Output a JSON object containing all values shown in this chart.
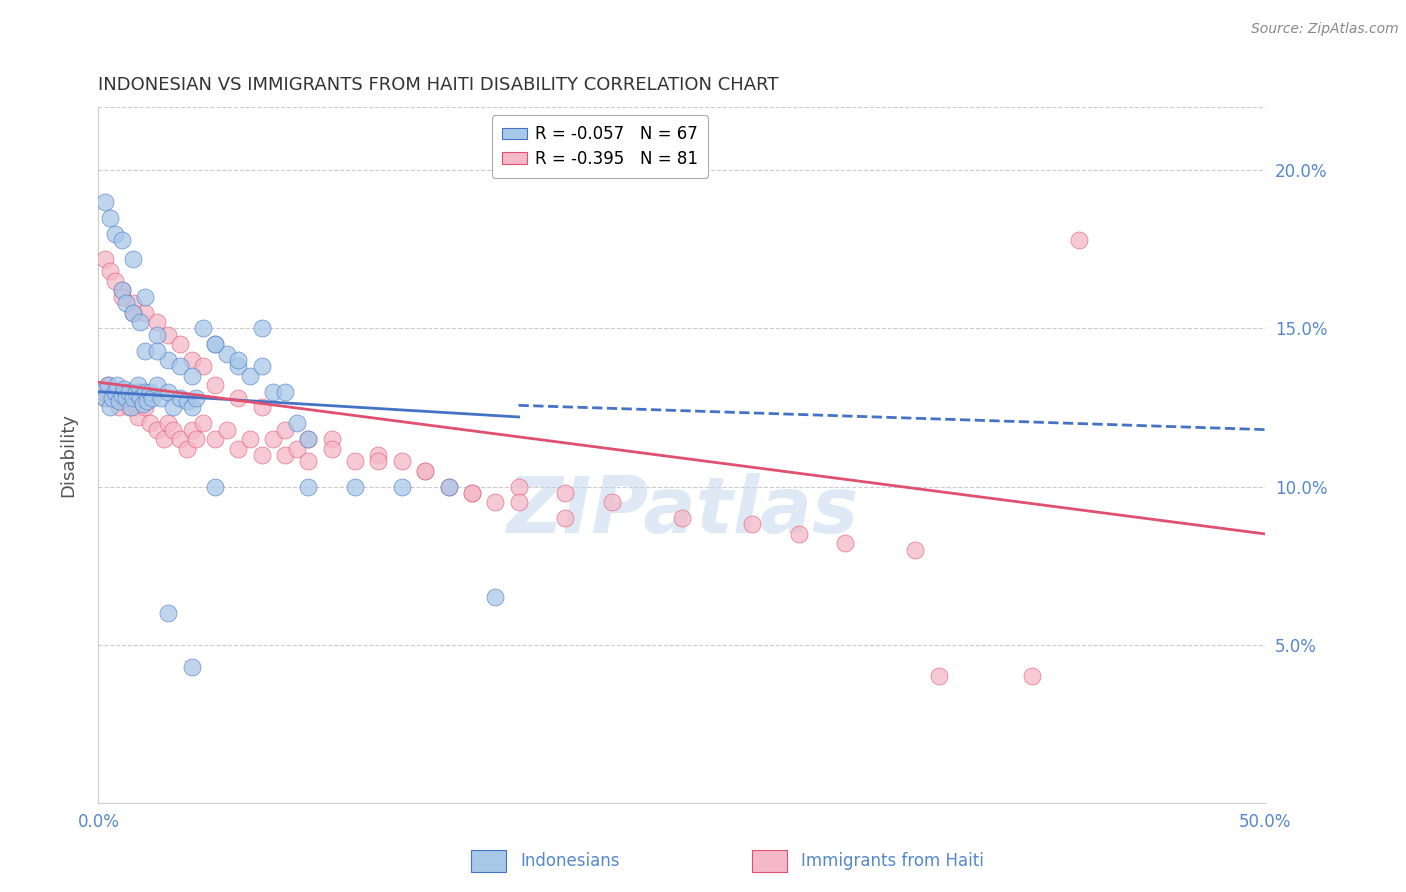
{
  "title": "INDONESIAN VS IMMIGRANTS FROM HAITI DISABILITY CORRELATION CHART",
  "source": "Source: ZipAtlas.com",
  "ylabel": "Disability",
  "x_min": 0.0,
  "x_max": 0.5,
  "y_min": 0.0,
  "y_max": 0.22,
  "yticks": [
    0.05,
    0.1,
    0.15,
    0.2
  ],
  "ytick_labels": [
    "5.0%",
    "10.0%",
    "15.0%",
    "20.0%"
  ],
  "xticks": [
    0.0,
    0.1,
    0.2,
    0.3,
    0.4,
    0.5
  ],
  "xtick_labels": [
    "0.0%",
    "",
    "",
    "",
    "",
    "50.0%"
  ],
  "watermark": "ZIPatlas",
  "legend_1_label": "R = -0.057   N = 67",
  "legend_2_label": "R = -0.395   N = 81",
  "series1_color": "#a8c8e8",
  "series2_color": "#f4b8c8",
  "line1_color": "#4472c4",
  "line2_color": "#e05070",
  "line1_solid_end": 0.18,
  "line1_start_y": 0.13,
  "line1_end_y": 0.122,
  "line1_dash_end_y": 0.118,
  "line2_start_y": 0.133,
  "line2_end_y": 0.085,
  "axis_color": "#5588cc",
  "grid_color": "#cccccc",
  "title_color": "#333333",
  "background_color": "#ffffff",
  "indonesian_x": [
    0.002,
    0.003,
    0.004,
    0.005,
    0.006,
    0.007,
    0.008,
    0.009,
    0.01,
    0.011,
    0.012,
    0.013,
    0.014,
    0.015,
    0.016,
    0.017,
    0.018,
    0.019,
    0.02,
    0.021,
    0.022,
    0.023,
    0.025,
    0.027,
    0.03,
    0.032,
    0.035,
    0.038,
    0.04,
    0.042,
    0.045,
    0.05,
    0.055,
    0.06,
    0.065,
    0.07,
    0.075,
    0.08,
    0.085,
    0.09,
    0.01,
    0.012,
    0.015,
    0.018,
    0.02,
    0.025,
    0.03,
    0.035,
    0.04,
    0.05,
    0.06,
    0.07,
    0.09,
    0.11,
    0.13,
    0.15,
    0.17,
    0.003,
    0.005,
    0.007,
    0.01,
    0.015,
    0.02,
    0.025,
    0.03,
    0.04,
    0.05
  ],
  "indonesian_y": [
    0.13,
    0.128,
    0.132,
    0.125,
    0.128,
    0.13,
    0.132,
    0.127,
    0.129,
    0.131,
    0.128,
    0.13,
    0.125,
    0.128,
    0.13,
    0.132,
    0.128,
    0.126,
    0.13,
    0.127,
    0.13,
    0.128,
    0.132,
    0.128,
    0.13,
    0.125,
    0.128,
    0.127,
    0.125,
    0.128,
    0.15,
    0.145,
    0.142,
    0.138,
    0.135,
    0.15,
    0.13,
    0.13,
    0.12,
    0.115,
    0.162,
    0.158,
    0.155,
    0.152,
    0.16,
    0.148,
    0.14,
    0.138,
    0.135,
    0.145,
    0.14,
    0.138,
    0.1,
    0.1,
    0.1,
    0.1,
    0.065,
    0.19,
    0.185,
    0.18,
    0.178,
    0.172,
    0.143,
    0.143,
    0.06,
    0.043,
    0.1
  ],
  "haiti_x": [
    0.002,
    0.003,
    0.004,
    0.005,
    0.006,
    0.007,
    0.008,
    0.009,
    0.01,
    0.011,
    0.012,
    0.013,
    0.014,
    0.015,
    0.016,
    0.017,
    0.018,
    0.019,
    0.02,
    0.022,
    0.025,
    0.028,
    0.03,
    0.032,
    0.035,
    0.038,
    0.04,
    0.042,
    0.045,
    0.05,
    0.055,
    0.06,
    0.065,
    0.07,
    0.075,
    0.08,
    0.085,
    0.09,
    0.1,
    0.11,
    0.12,
    0.13,
    0.14,
    0.15,
    0.16,
    0.17,
    0.18,
    0.2,
    0.22,
    0.25,
    0.28,
    0.3,
    0.32,
    0.35,
    0.01,
    0.015,
    0.02,
    0.025,
    0.03,
    0.035,
    0.04,
    0.045,
    0.05,
    0.06,
    0.07,
    0.08,
    0.09,
    0.1,
    0.12,
    0.14,
    0.16,
    0.18,
    0.2,
    0.003,
    0.005,
    0.007,
    0.01,
    0.015,
    0.36,
    0.4,
    0.42
  ],
  "haiti_y": [
    0.13,
    0.128,
    0.132,
    0.13,
    0.128,
    0.13,
    0.128,
    0.125,
    0.128,
    0.13,
    0.128,
    0.125,
    0.13,
    0.128,
    0.125,
    0.122,
    0.13,
    0.128,
    0.125,
    0.12,
    0.118,
    0.115,
    0.12,
    0.118,
    0.115,
    0.112,
    0.118,
    0.115,
    0.12,
    0.115,
    0.118,
    0.112,
    0.115,
    0.11,
    0.115,
    0.11,
    0.112,
    0.108,
    0.115,
    0.108,
    0.11,
    0.108,
    0.105,
    0.1,
    0.098,
    0.095,
    0.1,
    0.098,
    0.095,
    0.09,
    0.088,
    0.085,
    0.082,
    0.08,
    0.162,
    0.158,
    0.155,
    0.152,
    0.148,
    0.145,
    0.14,
    0.138,
    0.132,
    0.128,
    0.125,
    0.118,
    0.115,
    0.112,
    0.108,
    0.105,
    0.098,
    0.095,
    0.09,
    0.172,
    0.168,
    0.165,
    0.16,
    0.155,
    0.04,
    0.04,
    0.178
  ]
}
